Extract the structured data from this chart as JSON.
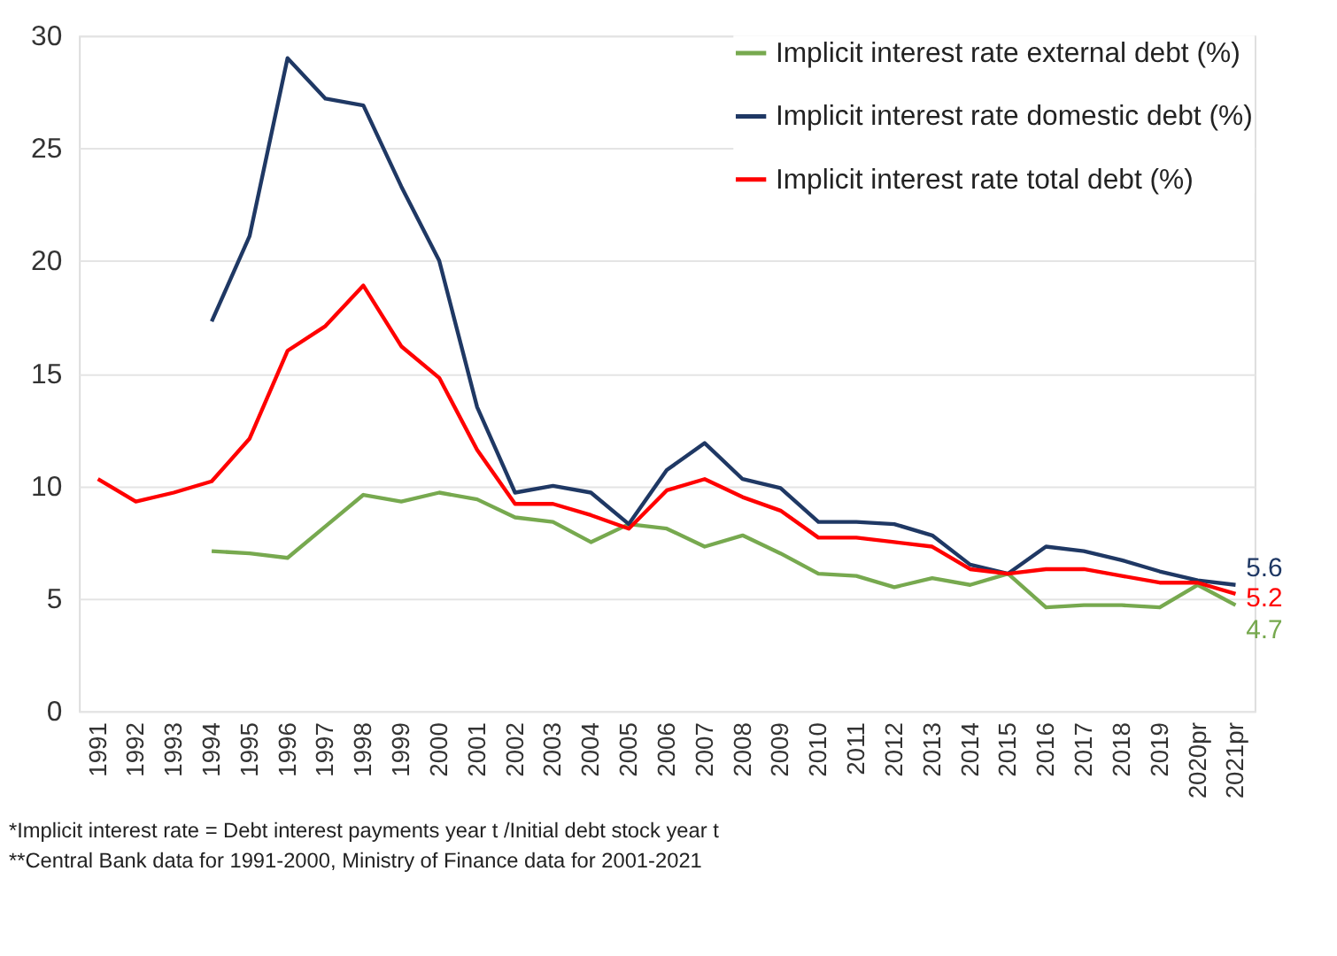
{
  "chart_data": {
    "type": "line",
    "categories": [
      "1991",
      "1992",
      "1993",
      "1994",
      "1995",
      "1996",
      "1997",
      "1998",
      "1999",
      "2000",
      "2001",
      "2002",
      "2003",
      "2004",
      "2005",
      "2006",
      "2007",
      "2008",
      "2009",
      "2010",
      "2011",
      "2012",
      "2013",
      "2014",
      "2015",
      "2016",
      "2017",
      "2018",
      "2019",
      "2020pr",
      "2021pr"
    ],
    "series": [
      {
        "name": "Implicit interest rate external debt (%)",
        "color": "#77a94f",
        "values": [
          null,
          null,
          null,
          7.1,
          7.0,
          6.8,
          8.2,
          9.6,
          9.3,
          9.7,
          9.4,
          8.6,
          8.4,
          7.5,
          8.3,
          8.1,
          7.3,
          7.8,
          7.0,
          6.1,
          6.0,
          5.5,
          5.9,
          5.6,
          6.1,
          4.6,
          4.7,
          4.7,
          4.6,
          5.6,
          4.7
        ],
        "value_labels": [
          null,
          null,
          null,
          null,
          null,
          null,
          null,
          null,
          null,
          null,
          null,
          null,
          null,
          null,
          null,
          null,
          null,
          null,
          null,
          null,
          null,
          null,
          null,
          null,
          null,
          null,
          null,
          null,
          null,
          null,
          "4.7"
        ]
      },
      {
        "name": "Implicit interest rate domestic debt (%)",
        "color": "#1f3864",
        "values": [
          null,
          null,
          null,
          17.3,
          21.1,
          29.0,
          27.2,
          26.9,
          23.3,
          20.0,
          13.5,
          9.7,
          10.0,
          9.7,
          8.3,
          10.7,
          11.9,
          10.3,
          9.9,
          8.4,
          8.4,
          8.3,
          7.8,
          6.5,
          6.1,
          7.3,
          7.1,
          6.7,
          6.2,
          5.8,
          5.6
        ],
        "value_labels": [
          null,
          null,
          null,
          null,
          null,
          null,
          null,
          null,
          null,
          null,
          null,
          null,
          null,
          null,
          null,
          null,
          null,
          null,
          null,
          null,
          null,
          null,
          null,
          null,
          null,
          null,
          null,
          null,
          null,
          null,
          "5.6"
        ]
      },
      {
        "name": "Implicit interest rate total debt (%)",
        "color": "#ff0000",
        "values": [
          10.3,
          9.3,
          9.7,
          10.2,
          12.1,
          16.0,
          17.1,
          18.9,
          16.2,
          14.8,
          11.6,
          9.2,
          9.2,
          8.7,
          8.1,
          9.8,
          10.3,
          9.5,
          8.9,
          7.7,
          7.7,
          7.5,
          7.3,
          6.3,
          6.1,
          6.3,
          6.3,
          6.0,
          5.7,
          5.7,
          5.2
        ],
        "value_labels": [
          null,
          null,
          null,
          null,
          null,
          null,
          null,
          null,
          null,
          null,
          null,
          null,
          null,
          null,
          null,
          null,
          null,
          null,
          null,
          null,
          null,
          null,
          null,
          null,
          null,
          null,
          null,
          null,
          null,
          null,
          "5.2"
        ]
      }
    ],
    "ylim": [
      0,
      30
    ],
    "yticks": [
      0,
      5,
      10,
      15,
      20,
      25,
      30
    ],
    "grid": "y",
    "legend": "top right",
    "marker": "none",
    "line_style": "solid",
    "annotations": [
      "*Implicit interest rate = Debt interest payments year t /Initial debt stock year t",
      "**Central Bank data for 1991-2000, Ministry of Finance data for 2001-2021"
    ]
  }
}
